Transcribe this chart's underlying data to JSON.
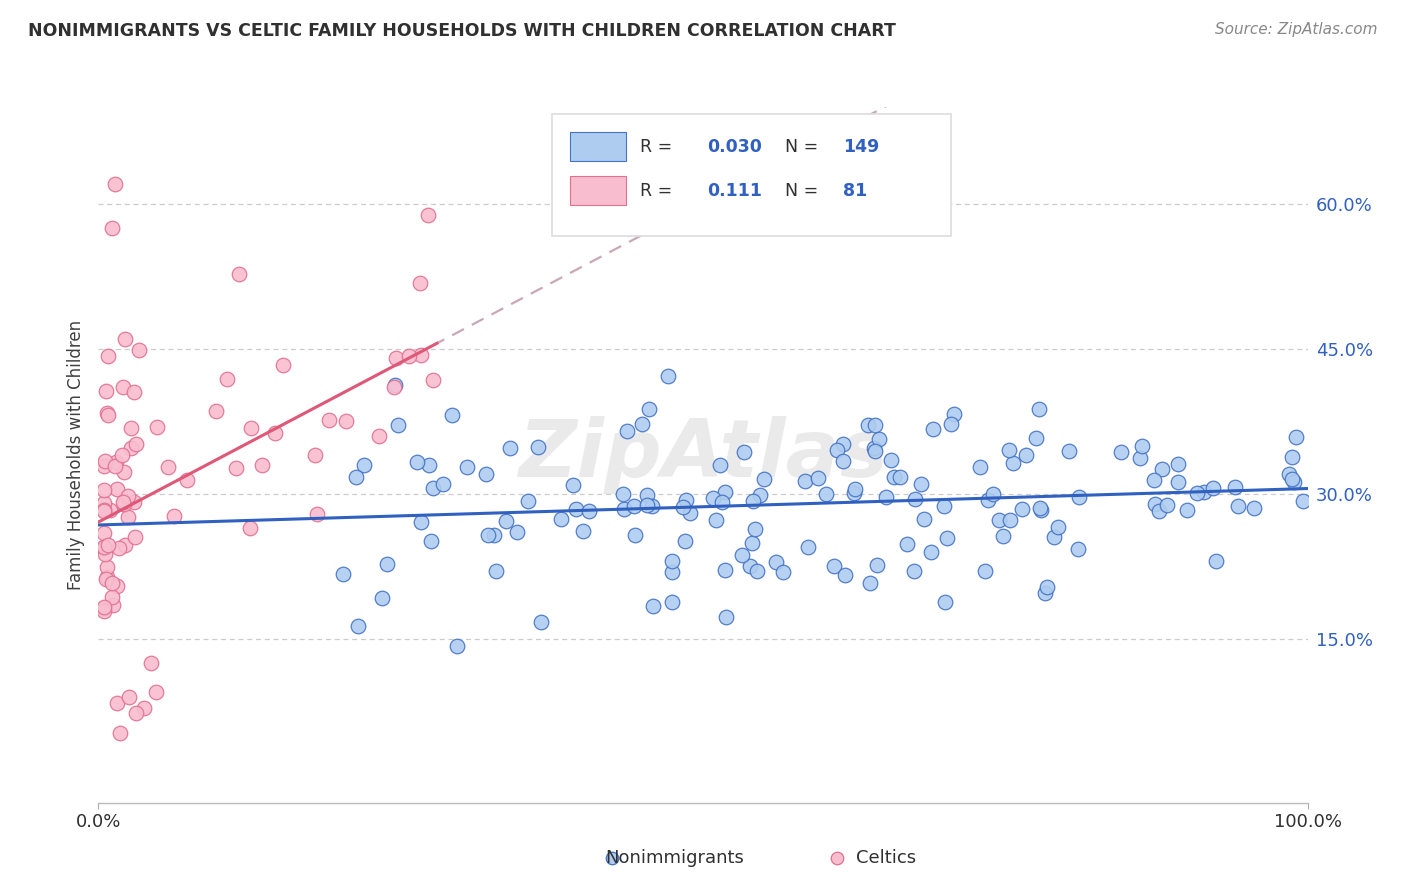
{
  "title": "NONIMMIGRANTS VS CELTIC FAMILY HOUSEHOLDS WITH CHILDREN CORRELATION CHART",
  "source": "Source: ZipAtlas.com",
  "ylabel": "Family Households with Children",
  "ytick_vals": [
    0.15,
    0.3,
    0.45,
    0.6
  ],
  "ytick_labels": [
    "15.0%",
    "30.0%",
    "45.0%",
    "60.0%"
  ],
  "xtick_vals": [
    0.0,
    1.0
  ],
  "xtick_labels": [
    "0.0%",
    "100.0%"
  ],
  "legend_entries": [
    {
      "label": "Nonimmigrants",
      "face_color": "#aeccf0",
      "edge_color": "#4472c4",
      "R": 0.03,
      "N": 149
    },
    {
      "label": "Celtics",
      "face_color": "#f9bdd0",
      "edge_color": "#e07090",
      "R": 0.111,
      "N": 81
    }
  ],
  "blue_line_color": "#3060c0",
  "pink_solid_color": "#e05878",
  "pink_dash_color": "#c8a8b8",
  "watermark": "ZipAtlas",
  "bg_color": "#ffffff",
  "grid_color": "#cccccc",
  "title_color": "#303030",
  "source_color": "#888888",
  "axis_tick_color": "#3060c0",
  "ylabel_color": "#404040",
  "legend_text_color": "#303030",
  "legend_val_color": "#3060c0",
  "legend_box_color": "#dddddd",
  "bottom_legend_color": "#303030",
  "xlim": [
    0.0,
    1.0
  ],
  "ylim": [
    -0.02,
    0.7
  ]
}
